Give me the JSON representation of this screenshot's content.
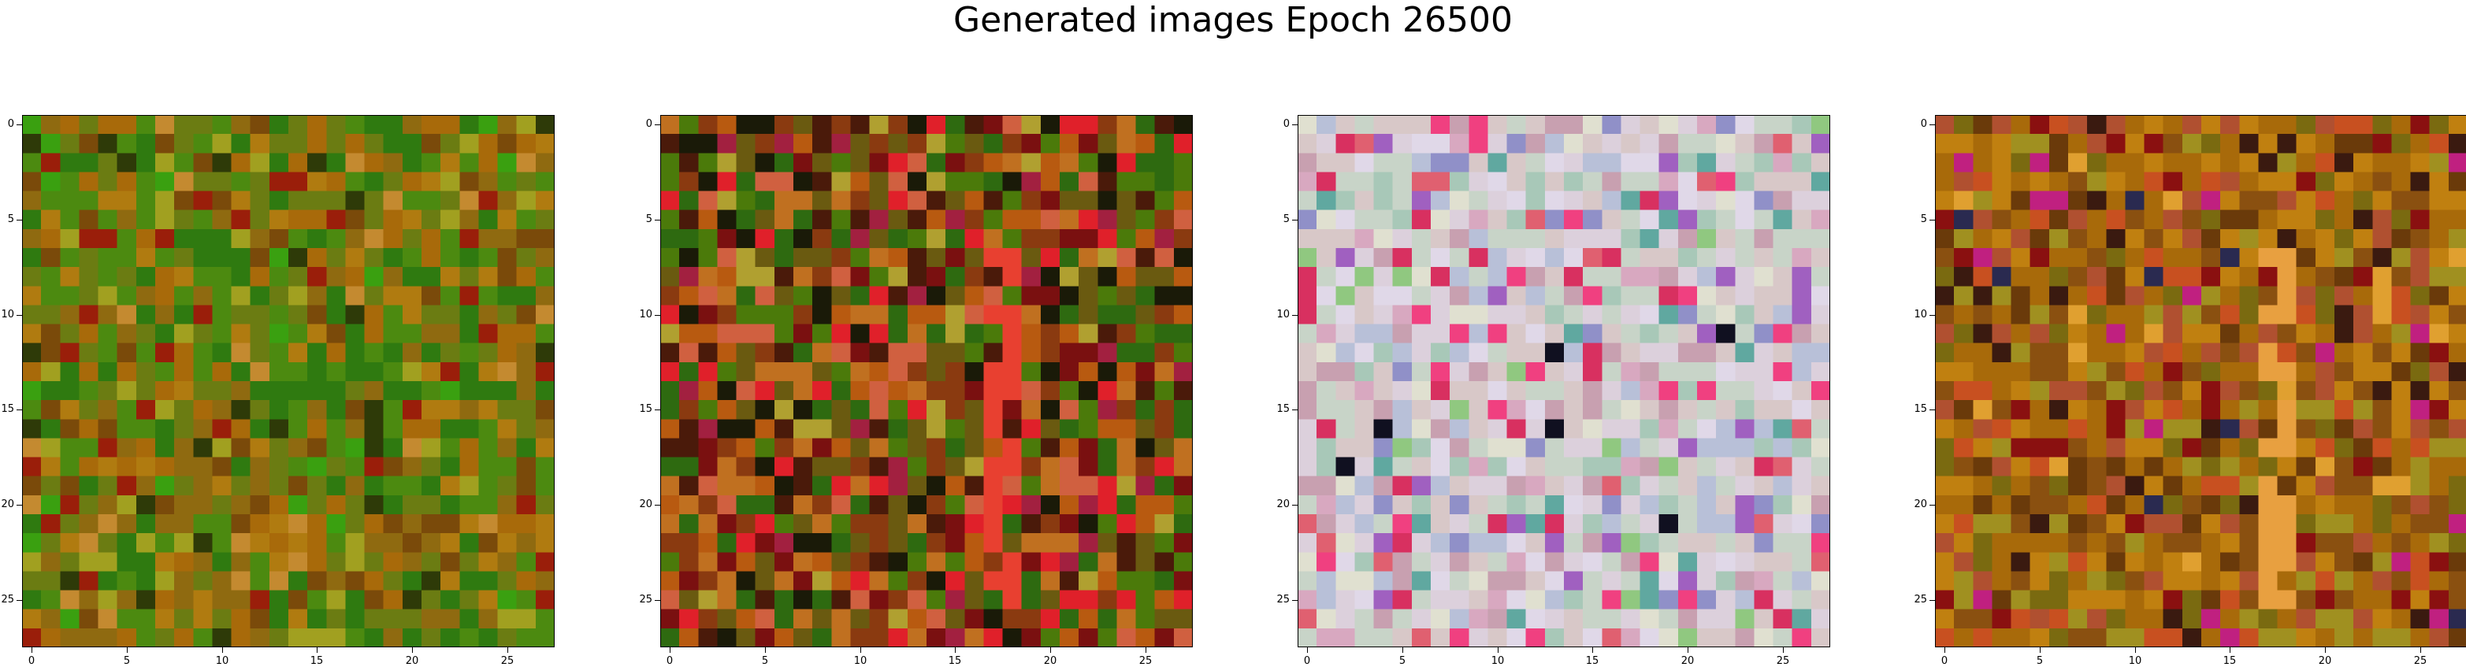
{
  "figure": {
    "title": "Generated images Epoch 26500",
    "x_tick_labels": [
      "0",
      "5",
      "10",
      "15",
      "20",
      "25"
    ],
    "y_tick_labels": [
      "0",
      "5",
      "10",
      "15",
      "20",
      "25"
    ],
    "image_grid": {
      "width": 28,
      "height": 28
    }
  },
  "panels": [
    {
      "palette": [
        "#2f7a10",
        "#4c8a10",
        "#6b7c12",
        "#8f6a10",
        "#a86a0a",
        "#b07b10",
        "#7a4a0a",
        "#2e3a08",
        "#9a1e0a",
        "#a1a020",
        "#3aa010",
        "#c48a30"
      ],
      "weights": [
        16,
        16,
        13,
        12,
        10,
        9,
        7,
        4,
        4,
        5,
        3,
        3
      ],
      "band": null
    },
    {
      "palette": [
        "#2e6a10",
        "#4b7a0a",
        "#6a5a10",
        "#8a3a10",
        "#b85a10",
        "#c07020",
        "#1a1a08",
        "#7a1010",
        "#e0202a",
        "#a22040",
        "#b0a030",
        "#d06040",
        "#4a1a0a"
      ],
      "weights": [
        10,
        10,
        10,
        10,
        10,
        9,
        6,
        7,
        6,
        4,
        4,
        5,
        6
      ],
      "band": "#e84030"
    },
    {
      "palette": [
        "#d8c8c8",
        "#c8d4c8",
        "#dcd0dc",
        "#b8c0d8",
        "#c8a0b0",
        "#a8c8b8",
        "#e0d8e8",
        "#d8a8c0",
        "#e0e0d0",
        "#9090c8",
        "#d83060",
        "#e06070",
        "#60a8a0",
        "#a060c0",
        "#101020",
        "#f04080",
        "#90c880"
      ],
      "weights": [
        18,
        16,
        14,
        10,
        9,
        8,
        8,
        6,
        6,
        4,
        4,
        3,
        3,
        3,
        1,
        3,
        2
      ],
      "band": null
    },
    {
      "palette": [
        "#a86a0a",
        "#c08010",
        "#8a5010",
        "#b05030",
        "#7a6a10",
        "#a09020",
        "#6a3a0a",
        "#c85020",
        "#8a1010",
        "#3a1a10",
        "#c02080",
        "#2a2a50",
        "#e0a030"
      ],
      "weights": [
        16,
        14,
        12,
        10,
        9,
        8,
        7,
        7,
        5,
        3,
        2,
        1,
        3
      ],
      "band": "#e8a040"
    }
  ]
}
